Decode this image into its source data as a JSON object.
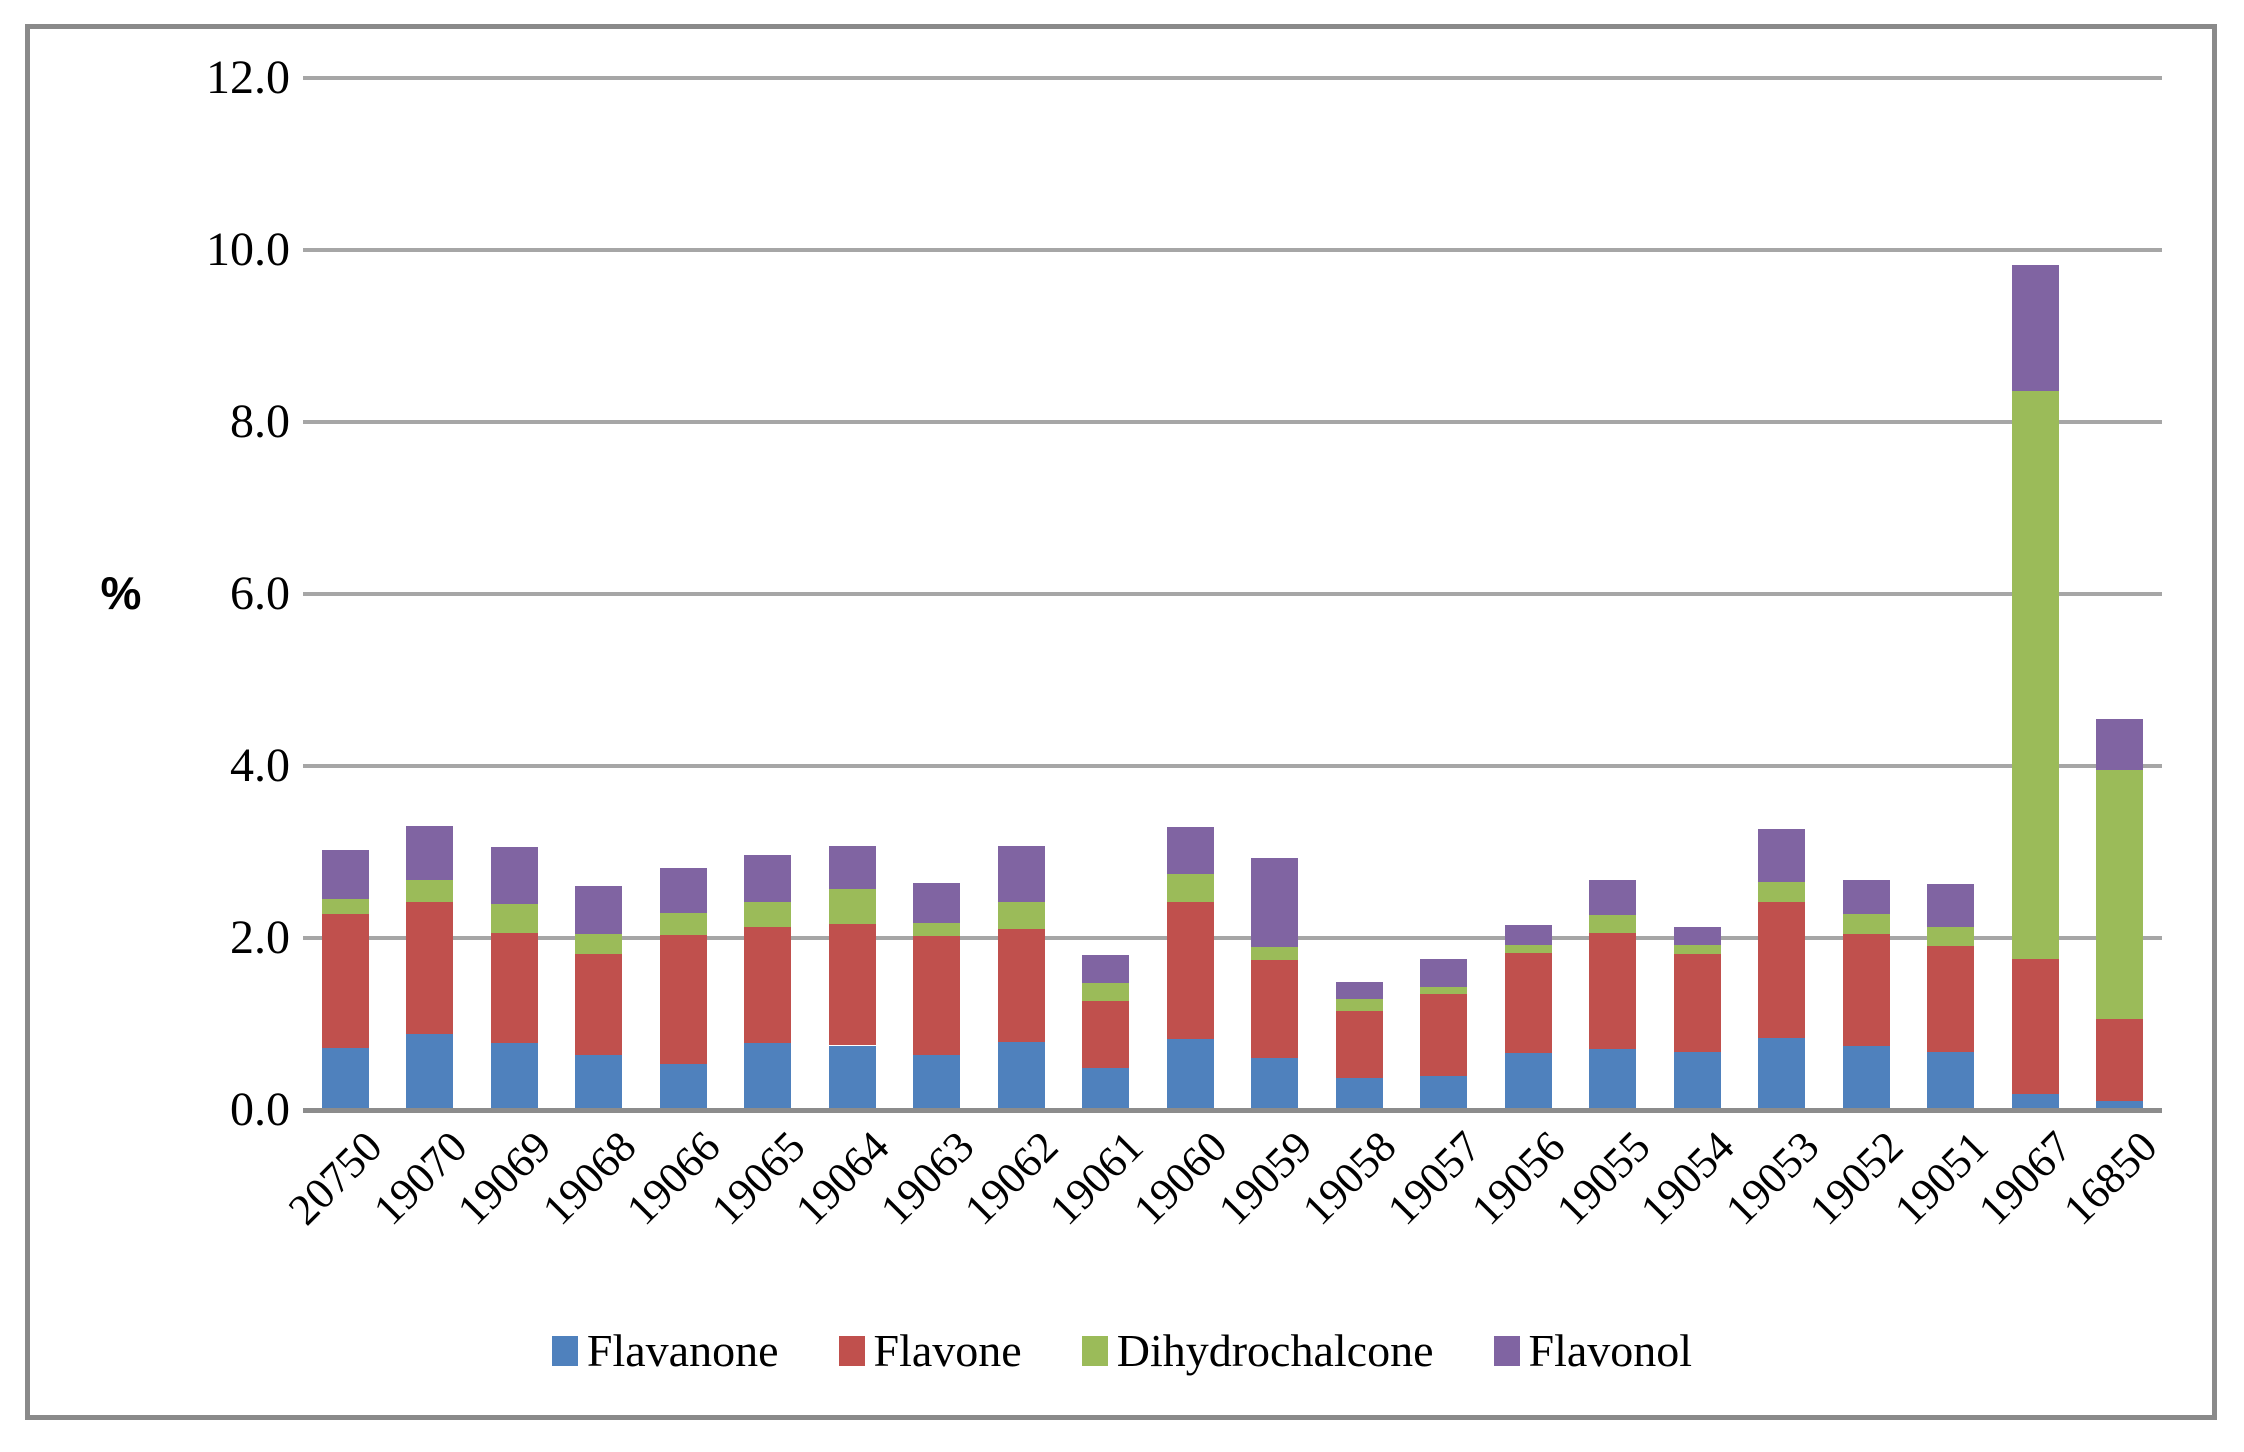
{
  "chart_data": {
    "type": "bar",
    "stacked": true,
    "title": "",
    "xlabel": "",
    "ylabel": "%",
    "ylim": [
      0,
      12
    ],
    "ytick_step": 2,
    "yticks": [
      "0.0",
      "2.0",
      "4.0",
      "6.0",
      "8.0",
      "10.0",
      "12.0"
    ],
    "grid": true,
    "legend_position": "bottom",
    "categories": [
      "20750",
      "19070",
      "19069",
      "19068",
      "19066",
      "19065",
      "19064",
      "19063",
      "19062",
      "19061",
      "19060",
      "19059",
      "19058",
      "19057",
      "19056",
      "19055",
      "19054",
      "19053",
      "19052",
      "19051",
      "19067",
      "16850"
    ],
    "series": [
      {
        "name": "Flavanone",
        "color": "#4F81BD",
        "values": [
          0.72,
          0.88,
          0.78,
          0.64,
          0.54,
          0.78,
          0.75,
          0.64,
          0.79,
          0.49,
          0.82,
          0.6,
          0.37,
          0.4,
          0.66,
          0.71,
          0.67,
          0.84,
          0.74,
          0.68,
          0.19,
          0.11
        ]
      },
      {
        "name": "Flavone",
        "color": "#C0504D",
        "values": [
          1.56,
          1.54,
          1.28,
          1.17,
          1.5,
          1.35,
          1.41,
          1.38,
          1.31,
          0.78,
          1.6,
          1.14,
          0.78,
          0.95,
          1.16,
          1.35,
          1.14,
          1.58,
          1.31,
          1.23,
          1.57,
          0.95
        ]
      },
      {
        "name": "Dihydrochalcone",
        "color": "#9BBB59",
        "values": [
          0.17,
          0.26,
          0.34,
          0.24,
          0.25,
          0.29,
          0.41,
          0.15,
          0.32,
          0.21,
          0.32,
          0.16,
          0.14,
          0.08,
          0.1,
          0.21,
          0.11,
          0.23,
          0.23,
          0.22,
          6.6,
          2.89
        ]
      },
      {
        "name": "Flavonol",
        "color": "#8064A2",
        "values": [
          0.57,
          0.62,
          0.66,
          0.55,
          0.52,
          0.54,
          0.5,
          0.47,
          0.65,
          0.32,
          0.55,
          1.03,
          0.2,
          0.33,
          0.23,
          0.4,
          0.21,
          0.62,
          0.39,
          0.5,
          1.47,
          0.6
        ]
      }
    ]
  },
  "colors": {
    "gridline": "#A6A6A6",
    "axis_line": "#8C8C8C",
    "border": "#8A8A8A",
    "text": "#000000",
    "background": "#FFFFFF"
  }
}
